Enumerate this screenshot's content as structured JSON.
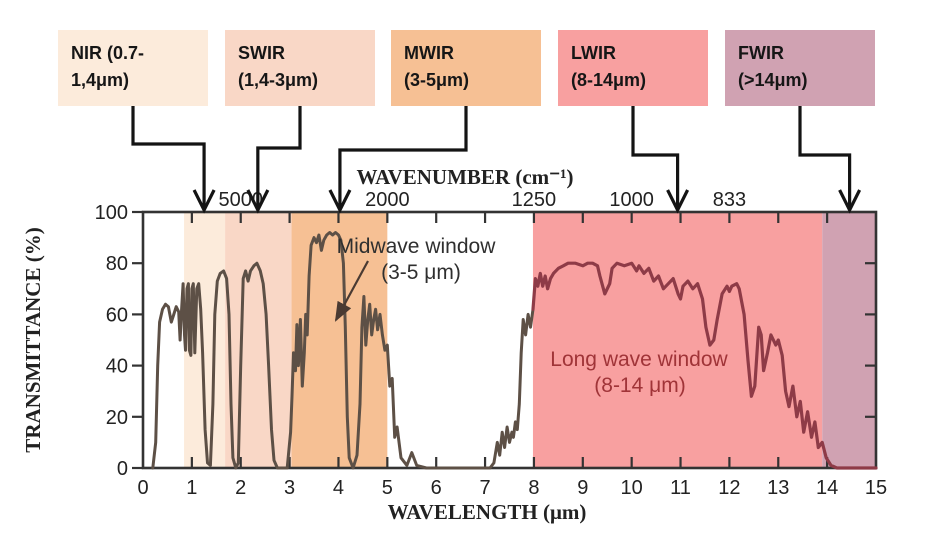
{
  "figure": {
    "description": "Atmospheric transmittance versus wavelength with infrared band regions"
  },
  "chart_data": {
    "type": "line",
    "title": "",
    "xlabel": "WAVELENGTH (μm)",
    "ylabel": "TRANSMITTANCE (%)",
    "top_axis_label": "WAVENUMBER (cm⁻¹)",
    "xlim": [
      0,
      15
    ],
    "ylim": [
      0,
      100
    ],
    "xticks": [
      "0",
      "1",
      "2",
      "3",
      "4",
      "5",
      "6",
      "7",
      "8",
      "9",
      "10",
      "11",
      "12",
      "13",
      "14",
      "15"
    ],
    "yticks": [
      0,
      20,
      40,
      60,
      80,
      100
    ],
    "grid": false,
    "wavenumber_ticks": [
      {
        "label": "5000",
        "um": 2
      },
      {
        "label": "2000",
        "um": 5
      },
      {
        "label": "1250",
        "um": 8
      },
      {
        "label": "1000",
        "um": 10
      },
      {
        "label": "833",
        "um": 12
      }
    ],
    "ir_bands": [
      {
        "name": "NIR",
        "label_line1": "NIR (0.7-",
        "label_line2": "1,4μm)",
        "range_um": [
          0.7,
          1.4
        ],
        "shade_um": [
          0.84,
          1.68
        ],
        "color": "#fcebdb",
        "arrow_um": 1.25
      },
      {
        "name": "SWIR",
        "label_line1": "SWIR",
        "label_line2": "(1,4-3μm)",
        "range_um": [
          1.4,
          3
        ],
        "shade_um": [
          1.68,
          3.04
        ],
        "color": "#f9d7c6",
        "arrow_um": 2.35
      },
      {
        "name": "MWIR",
        "label_line1": "MWIR",
        "label_line2": "(3-5μm)",
        "range_um": [
          3,
          5
        ],
        "shade_um": [
          3.04,
          5.0
        ],
        "color": "#f6c094",
        "arrow_um": 4.03
      },
      {
        "name": "LWIR",
        "label_line1": "LWIR",
        "label_line2": "(8-14μm)",
        "range_um": [
          8,
          14
        ],
        "shade_um": [
          7.98,
          13.9
        ],
        "color": "#f8a0a0",
        "arrow_um": 10.94
      },
      {
        "name": "FWIR",
        "label_line1": "FWIR",
        "label_line2": "(>14μm)",
        "range_um": [
          14,
          15
        ],
        "shade_um": [
          13.9,
          15.0
        ],
        "color": "#d0a2b2",
        "arrow_um": 14.46
      }
    ],
    "annotations": [
      {
        "line1": "Midwave window",
        "line2": "(3-5 μm)",
        "color": "#2f2f2f"
      },
      {
        "line1": "Long wave window",
        "line2": "(8-14 μm)",
        "color": "#a03438"
      }
    ],
    "series": [
      {
        "name": "atmospheric transmittance",
        "color_below_8um": "#5d5046",
        "color_above_8um": "#8e3b47",
        "points": [
          [
            0.2,
            0
          ],
          [
            0.26,
            10
          ],
          [
            0.3,
            40
          ],
          [
            0.34,
            57
          ],
          [
            0.4,
            62
          ],
          [
            0.46,
            64
          ],
          [
            0.52,
            63
          ],
          [
            0.58,
            57
          ],
          [
            0.63,
            60
          ],
          [
            0.68,
            63
          ],
          [
            0.73,
            61
          ],
          [
            0.76,
            50
          ],
          [
            0.79,
            62
          ],
          [
            0.82,
            72
          ],
          [
            0.85,
            52
          ],
          [
            0.87,
            46
          ],
          [
            0.9,
            70
          ],
          [
            0.93,
            72
          ],
          [
            0.95,
            46
          ],
          [
            0.98,
            44
          ],
          [
            1.0,
            70
          ],
          [
            1.03,
            72
          ],
          [
            1.06,
            45
          ],
          [
            1.1,
            70
          ],
          [
            1.14,
            72
          ],
          [
            1.18,
            62
          ],
          [
            1.22,
            45
          ],
          [
            1.27,
            15
          ],
          [
            1.32,
            2
          ],
          [
            1.38,
            1
          ],
          [
            1.43,
            25
          ],
          [
            1.47,
            60
          ],
          [
            1.52,
            73
          ],
          [
            1.58,
            76
          ],
          [
            1.65,
            77
          ],
          [
            1.71,
            74
          ],
          [
            1.76,
            60
          ],
          [
            1.8,
            25
          ],
          [
            1.84,
            4
          ],
          [
            1.9,
            0
          ],
          [
            1.95,
            2
          ],
          [
            2.0,
            40
          ],
          [
            2.05,
            74
          ],
          [
            2.1,
            77
          ],
          [
            2.15,
            73
          ],
          [
            2.2,
            77
          ],
          [
            2.27,
            79
          ],
          [
            2.33,
            80
          ],
          [
            2.4,
            77
          ],
          [
            2.46,
            72
          ],
          [
            2.52,
            60
          ],
          [
            2.57,
            40
          ],
          [
            2.63,
            15
          ],
          [
            2.68,
            3
          ],
          [
            2.75,
            0
          ],
          [
            2.95,
            0
          ],
          [
            3.02,
            14
          ],
          [
            3.05,
            28
          ],
          [
            3.08,
            45
          ],
          [
            3.12,
            38
          ],
          [
            3.15,
            56
          ],
          [
            3.18,
            40
          ],
          [
            3.22,
            58
          ],
          [
            3.26,
            32
          ],
          [
            3.3,
            45
          ],
          [
            3.33,
            60
          ],
          [
            3.36,
            52
          ],
          [
            3.4,
            75
          ],
          [
            3.44,
            87
          ],
          [
            3.5,
            90
          ],
          [
            3.55,
            88
          ],
          [
            3.6,
            91
          ],
          [
            3.65,
            85
          ],
          [
            3.7,
            89
          ],
          [
            3.76,
            91
          ],
          [
            3.82,
            92
          ],
          [
            3.88,
            91
          ],
          [
            3.94,
            92
          ],
          [
            4.0,
            91
          ],
          [
            4.05,
            89
          ],
          [
            4.1,
            80
          ],
          [
            4.14,
            55
          ],
          [
            4.18,
            20
          ],
          [
            4.22,
            4
          ],
          [
            4.3,
            0
          ],
          [
            4.38,
            5
          ],
          [
            4.44,
            25
          ],
          [
            4.48,
            55
          ],
          [
            4.52,
            67
          ],
          [
            4.56,
            48
          ],
          [
            4.6,
            58
          ],
          [
            4.64,
            64
          ],
          [
            4.68,
            52
          ],
          [
            4.72,
            58
          ],
          [
            4.76,
            62
          ],
          [
            4.8,
            54
          ],
          [
            4.85,
            60
          ],
          [
            4.9,
            52
          ],
          [
            4.95,
            46
          ],
          [
            5.0,
            48
          ],
          [
            5.05,
            32
          ],
          [
            5.1,
            35
          ],
          [
            5.15,
            12
          ],
          [
            5.2,
            16
          ],
          [
            5.28,
            4
          ],
          [
            5.4,
            1
          ],
          [
            5.5,
            6
          ],
          [
            5.6,
            1
          ],
          [
            5.8,
            0
          ],
          [
            7.1,
            0
          ],
          [
            7.18,
            2
          ],
          [
            7.25,
            10
          ],
          [
            7.3,
            5
          ],
          [
            7.35,
            14
          ],
          [
            7.4,
            8
          ],
          [
            7.45,
            16
          ],
          [
            7.5,
            10
          ],
          [
            7.55,
            14
          ],
          [
            7.58,
            12
          ],
          [
            7.62,
            18
          ],
          [
            7.66,
            15
          ],
          [
            7.7,
            25
          ],
          [
            7.74,
            45
          ],
          [
            7.78,
            58
          ],
          [
            7.83,
            52
          ],
          [
            7.88,
            60
          ],
          [
            7.93,
            55
          ],
          [
            7.98,
            62
          ],
          [
            8.03,
            74
          ],
          [
            8.08,
            71
          ],
          [
            8.13,
            76
          ],
          [
            8.18,
            71
          ],
          [
            8.23,
            75
          ],
          [
            8.28,
            70
          ],
          [
            8.34,
            74
          ],
          [
            8.4,
            76
          ],
          [
            8.5,
            78
          ],
          [
            8.6,
            79
          ],
          [
            8.7,
            80
          ],
          [
            8.85,
            80
          ],
          [
            9.0,
            79
          ],
          [
            9.1,
            80
          ],
          [
            9.2,
            80
          ],
          [
            9.3,
            79
          ],
          [
            9.35,
            75
          ],
          [
            9.45,
            68
          ],
          [
            9.55,
            72
          ],
          [
            9.6,
            78
          ],
          [
            9.7,
            80
          ],
          [
            9.85,
            79
          ],
          [
            10.0,
            80
          ],
          [
            10.1,
            77
          ],
          [
            10.15,
            79
          ],
          [
            10.25,
            76
          ],
          [
            10.35,
            78
          ],
          [
            10.45,
            73
          ],
          [
            10.55,
            75
          ],
          [
            10.65,
            70
          ],
          [
            10.75,
            72
          ],
          [
            10.85,
            74
          ],
          [
            10.95,
            68
          ],
          [
            11.0,
            66
          ],
          [
            11.05,
            71
          ],
          [
            11.15,
            73
          ],
          [
            11.25,
            70
          ],
          [
            11.35,
            72
          ],
          [
            11.45,
            66
          ],
          [
            11.52,
            55
          ],
          [
            11.6,
            48
          ],
          [
            11.68,
            50
          ],
          [
            11.75,
            58
          ],
          [
            11.85,
            68
          ],
          [
            11.95,
            71
          ],
          [
            12.0,
            69
          ],
          [
            12.05,
            71
          ],
          [
            12.15,
            72
          ],
          [
            12.2,
            70
          ],
          [
            12.3,
            60
          ],
          [
            12.38,
            42
          ],
          [
            12.45,
            28
          ],
          [
            12.52,
            32
          ],
          [
            12.6,
            55
          ],
          [
            12.65,
            52
          ],
          [
            12.7,
            38
          ],
          [
            12.78,
            45
          ],
          [
            12.85,
            52
          ],
          [
            12.95,
            48
          ],
          [
            13.0,
            50
          ],
          [
            13.08,
            44
          ],
          [
            13.15,
            30
          ],
          [
            13.22,
            24
          ],
          [
            13.3,
            32
          ],
          [
            13.38,
            20
          ],
          [
            13.45,
            26
          ],
          [
            13.52,
            14
          ],
          [
            13.6,
            22
          ],
          [
            13.68,
            12
          ],
          [
            13.75,
            18
          ],
          [
            13.82,
            8
          ],
          [
            13.9,
            10
          ],
          [
            13.98,
            4
          ],
          [
            14.08,
            1
          ],
          [
            14.2,
            0
          ],
          [
            15.0,
            0
          ]
        ]
      }
    ],
    "colors": {
      "frame": "#333333",
      "tick_text": "#222222",
      "connector_arrow": "#141414",
      "annotation_arrow": "#4a3a32"
    }
  }
}
